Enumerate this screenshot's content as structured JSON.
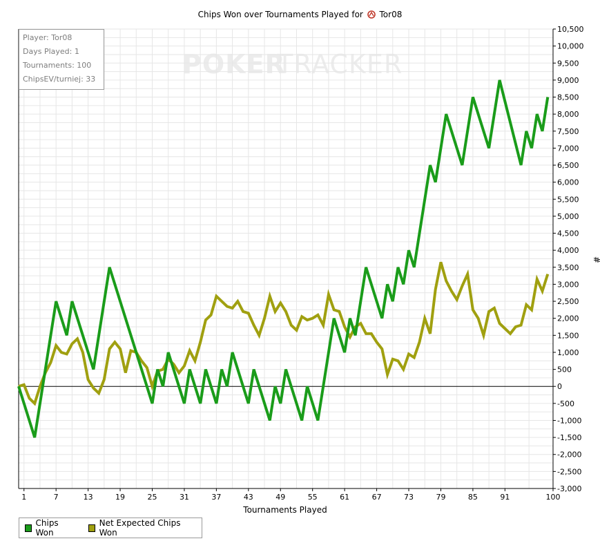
{
  "window": {
    "title_prefix": "Chips Won over Tournaments Played for",
    "player_name": "Tor08",
    "title_icon": "poker-stars-icon"
  },
  "info_box": {
    "lines": [
      "Player: Tor08",
      "Days Played: 1",
      "Tournaments: 100",
      "ChipsEV/turniej: 33"
    ]
  },
  "watermark": {
    "left": "POKER",
    "right": "TRACKER"
  },
  "colors": {
    "chips_won": "#1a9c1a",
    "net_expected": "#a0a010",
    "grid": "#e6e6e6",
    "zero_line": "#000000"
  },
  "chart_data": {
    "type": "line",
    "title": "Chips Won over Tournaments Played for Tor08",
    "xlabel": "Tournaments Played",
    "ylabel": "#",
    "xlim": [
      0,
      100
    ],
    "ylim": [
      -3000,
      10500
    ],
    "x_ticks": [
      1,
      7,
      13,
      19,
      25,
      31,
      37,
      43,
      49,
      55,
      61,
      67,
      73,
      79,
      85,
      91,
      100
    ],
    "y_ticks": [
      -3000,
      -2500,
      -2000,
      -1500,
      -1000,
      -500,
      0,
      500,
      1000,
      1500,
      2000,
      2500,
      3000,
      3500,
      4000,
      4500,
      5000,
      5500,
      6000,
      6500,
      7000,
      7500,
      8000,
      8500,
      9000,
      9500,
      10000,
      10500
    ],
    "y_tick_labels": [
      "-3,000",
      "-2,500",
      "-2,000",
      "-1,500",
      "-1,000",
      "-500",
      "0",
      "500",
      "1,000",
      "1,500",
      "2,000",
      "2,500",
      "3,000",
      "3,500",
      "4,000",
      "4,500",
      "5,000",
      "5,500",
      "6,000",
      "6,500",
      "7,000",
      "7,500",
      "8,000",
      "8,500",
      "9,000",
      "9,500",
      "10,000",
      "10,500"
    ],
    "grid": true,
    "legend_position": "bottom-left",
    "series": [
      {
        "name": "Chips Won",
        "color": "#1a9c1a",
        "points": [
          [
            0,
            0
          ],
          [
            3,
            -1500
          ],
          [
            7,
            2500
          ],
          [
            9,
            1500
          ],
          [
            10,
            2500
          ],
          [
            14,
            500
          ],
          [
            17,
            3500
          ],
          [
            25,
            -500
          ],
          [
            26,
            500
          ],
          [
            27,
            0
          ],
          [
            28,
            1000
          ],
          [
            31,
            -500
          ],
          [
            32,
            500
          ],
          [
            34,
            -500
          ],
          [
            35,
            500
          ],
          [
            37,
            -500
          ],
          [
            38,
            500
          ],
          [
            39,
            0
          ],
          [
            40,
            1000
          ],
          [
            43,
            -500
          ],
          [
            44,
            500
          ],
          [
            47,
            -1000
          ],
          [
            48,
            0
          ],
          [
            49,
            -500
          ],
          [
            50,
            500
          ],
          [
            53,
            -1000
          ],
          [
            54,
            0
          ],
          [
            56,
            -1000
          ],
          [
            59,
            2000
          ],
          [
            61,
            1000
          ],
          [
            62,
            2000
          ],
          [
            63,
            1500
          ],
          [
            65,
            3500
          ],
          [
            68,
            2000
          ],
          [
            69,
            3000
          ],
          [
            70,
            2500
          ],
          [
            71,
            3500
          ],
          [
            72,
            3000
          ],
          [
            73,
            4000
          ],
          [
            74,
            3500
          ],
          [
            77,
            6500
          ],
          [
            78,
            6000
          ],
          [
            80,
            8000
          ],
          [
            83,
            6500
          ],
          [
            85,
            8500
          ],
          [
            88,
            7000
          ],
          [
            90,
            9000
          ],
          [
            94,
            6500
          ],
          [
            95,
            7500
          ],
          [
            96,
            7000
          ],
          [
            97,
            8000
          ],
          [
            98,
            7500
          ],
          [
            99,
            8500
          ]
        ]
      },
      {
        "name": "Net Expected Chips Won",
        "color": "#a0a010",
        "points": [
          [
            0,
            0
          ],
          [
            1,
            50
          ],
          [
            2,
            -350
          ],
          [
            3,
            -500
          ],
          [
            4,
            0
          ],
          [
            5,
            400
          ],
          [
            6,
            700
          ],
          [
            7,
            1200
          ],
          [
            8,
            1000
          ],
          [
            9,
            950
          ],
          [
            10,
            1250
          ],
          [
            11,
            1400
          ],
          [
            12,
            1000
          ],
          [
            13,
            200
          ],
          [
            14,
            -50
          ],
          [
            15,
            -200
          ],
          [
            16,
            200
          ],
          [
            17,
            1100
          ],
          [
            18,
            1300
          ],
          [
            19,
            1100
          ],
          [
            20,
            400
          ],
          [
            21,
            1050
          ],
          [
            22,
            1000
          ],
          [
            23,
            750
          ],
          [
            24,
            550
          ],
          [
            25,
            0
          ],
          [
            26,
            450
          ],
          [
            27,
            500
          ],
          [
            28,
            800
          ],
          [
            29,
            650
          ],
          [
            30,
            400
          ],
          [
            31,
            600
          ],
          [
            32,
            1050
          ],
          [
            33,
            750
          ],
          [
            34,
            1300
          ],
          [
            35,
            1950
          ],
          [
            36,
            2100
          ],
          [
            37,
            2650
          ],
          [
            38,
            2500
          ],
          [
            39,
            2350
          ],
          [
            40,
            2300
          ],
          [
            41,
            2500
          ],
          [
            42,
            2200
          ],
          [
            43,
            2150
          ],
          [
            44,
            1800
          ],
          [
            45,
            1500
          ],
          [
            46,
            2000
          ],
          [
            47,
            2650
          ],
          [
            48,
            2200
          ],
          [
            49,
            2450
          ],
          [
            50,
            2200
          ],
          [
            51,
            1800
          ],
          [
            52,
            1650
          ],
          [
            53,
            2050
          ],
          [
            54,
            1950
          ],
          [
            55,
            2000
          ],
          [
            56,
            2100
          ],
          [
            57,
            1800
          ],
          [
            58,
            2700
          ],
          [
            59,
            2250
          ],
          [
            60,
            2200
          ],
          [
            61,
            1750
          ],
          [
            62,
            1450
          ],
          [
            63,
            1750
          ],
          [
            64,
            1850
          ],
          [
            65,
            1550
          ],
          [
            66,
            1550
          ],
          [
            67,
            1300
          ],
          [
            68,
            1100
          ],
          [
            69,
            350
          ],
          [
            70,
            800
          ],
          [
            71,
            750
          ],
          [
            72,
            500
          ],
          [
            73,
            950
          ],
          [
            74,
            850
          ],
          [
            75,
            1300
          ],
          [
            76,
            2000
          ],
          [
            77,
            1550
          ],
          [
            78,
            2850
          ],
          [
            79,
            3650
          ],
          [
            80,
            3100
          ],
          [
            81,
            2800
          ],
          [
            82,
            2550
          ],
          [
            83,
            2950
          ],
          [
            84,
            3300
          ],
          [
            85,
            2250
          ],
          [
            86,
            2000
          ],
          [
            87,
            1500
          ],
          [
            88,
            2200
          ],
          [
            89,
            2300
          ],
          [
            90,
            1850
          ],
          [
            91,
            1700
          ],
          [
            92,
            1550
          ],
          [
            93,
            1750
          ],
          [
            94,
            1800
          ],
          [
            95,
            2400
          ],
          [
            96,
            2250
          ],
          [
            97,
            3150
          ],
          [
            98,
            2800
          ],
          [
            99,
            3300
          ]
        ]
      }
    ]
  }
}
